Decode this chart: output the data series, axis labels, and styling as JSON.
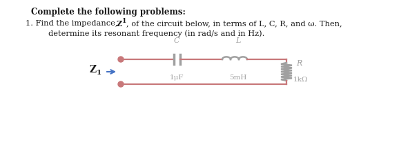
{
  "title_bold": "Complete the following problems:",
  "problem_line1": "1. Find the impedance, Z",
  "problem_line1b": "1",
  "problem_line1c": ", of the circuit below, in terms of L, C, R, and ω. Then,",
  "problem_line2": "determine its resonant frequency (in rad/s and in Hz).",
  "circuit_color": "#c8787a",
  "component_color": "#a0a0a0",
  "cap_label": "C",
  "ind_label": "L",
  "cap_value": "1μF",
  "ind_value": "5mH",
  "res_label": "R",
  "res_value": "1kΩ",
  "z1_label_main": "Z",
  "z1_label_sub": "1",
  "bg_color": "#ffffff",
  "text_color": "#1a1a1a"
}
